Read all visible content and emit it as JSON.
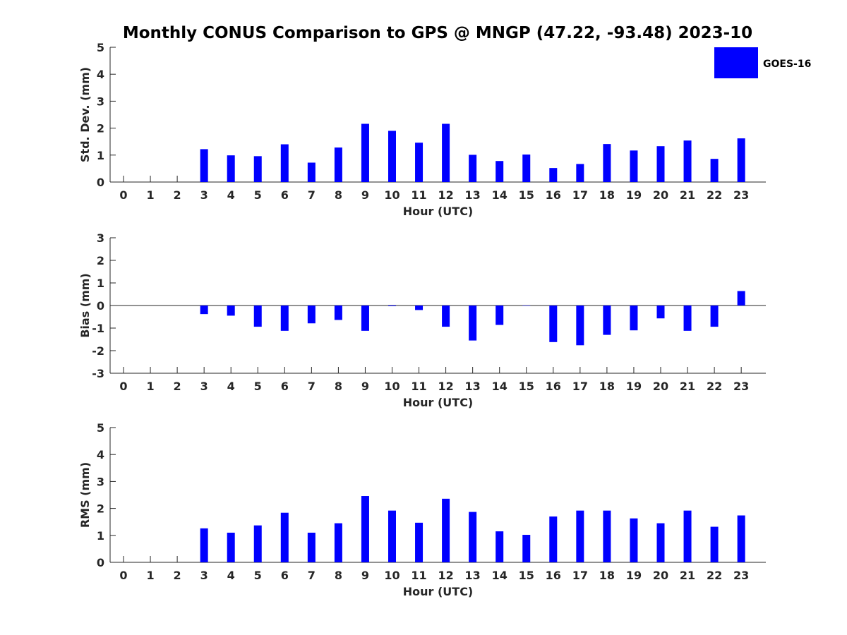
{
  "chart_data": [
    {
      "type": "bar",
      "title": "Monthly CONUS Comparison to GPS @ MNGP (47.22, -93.48) 2023-10",
      "xlabel": "Hour (UTC)",
      "ylabel": "Std. Dev. (mm)",
      "ylim": [
        0,
        5
      ],
      "yticks": [
        0,
        1,
        2,
        3,
        4,
        5
      ],
      "categories": [
        "0",
        "1",
        "2",
        "3",
        "4",
        "5",
        "6",
        "7",
        "8",
        "9",
        "10",
        "11",
        "12",
        "13",
        "14",
        "15",
        "16",
        "17",
        "18",
        "19",
        "20",
        "21",
        "22",
        "23"
      ],
      "series": [
        {
          "name": "GOES-16",
          "color": "#0000ff",
          "values": [
            null,
            null,
            null,
            1.22,
            0.99,
            0.96,
            1.4,
            0.72,
            1.28,
            2.16,
            1.9,
            1.46,
            2.16,
            1.01,
            0.78,
            1.02,
            0.52,
            0.67,
            1.41,
            1.17,
            1.33,
            1.54,
            0.86,
            1.62
          ]
        }
      ],
      "legend": {
        "position": "top-right",
        "entries": [
          "GOES-16"
        ]
      }
    },
    {
      "type": "bar",
      "xlabel": "Hour (UTC)",
      "ylabel": "Bias (mm)",
      "ylim": [
        -3,
        3
      ],
      "yticks": [
        -3,
        -2,
        -1,
        0,
        1,
        2,
        3
      ],
      "categories": [
        "0",
        "1",
        "2",
        "3",
        "4",
        "5",
        "6",
        "7",
        "8",
        "9",
        "10",
        "11",
        "12",
        "13",
        "14",
        "15",
        "16",
        "17",
        "18",
        "19",
        "20",
        "21",
        "22",
        "23"
      ],
      "series": [
        {
          "name": "GOES-16",
          "color": "#0000ff",
          "values": [
            null,
            null,
            null,
            -0.38,
            -0.45,
            -0.94,
            -1.12,
            -0.79,
            -0.64,
            -1.12,
            -0.03,
            -0.2,
            -0.94,
            -1.55,
            -0.86,
            0.0,
            -1.62,
            -1.76,
            -1.3,
            -1.1,
            -0.57,
            -1.12,
            -0.94,
            0.64
          ]
        }
      ]
    },
    {
      "type": "bar",
      "xlabel": "Hour (UTC)",
      "ylabel": "RMS (mm)",
      "ylim": [
        0,
        5
      ],
      "yticks": [
        0,
        1,
        2,
        3,
        4,
        5
      ],
      "categories": [
        "0",
        "1",
        "2",
        "3",
        "4",
        "5",
        "6",
        "7",
        "8",
        "9",
        "10",
        "11",
        "12",
        "13",
        "14",
        "15",
        "16",
        "17",
        "18",
        "19",
        "20",
        "21",
        "22",
        "23"
      ],
      "series": [
        {
          "name": "GOES-16",
          "color": "#0000ff",
          "values": [
            null,
            null,
            null,
            1.26,
            1.1,
            1.37,
            1.84,
            1.1,
            1.45,
            2.46,
            1.92,
            1.47,
            2.36,
            1.87,
            1.15,
            1.02,
            1.7,
            1.92,
            1.92,
            1.63,
            1.45,
            1.92,
            1.32,
            1.74
          ]
        }
      ]
    }
  ]
}
